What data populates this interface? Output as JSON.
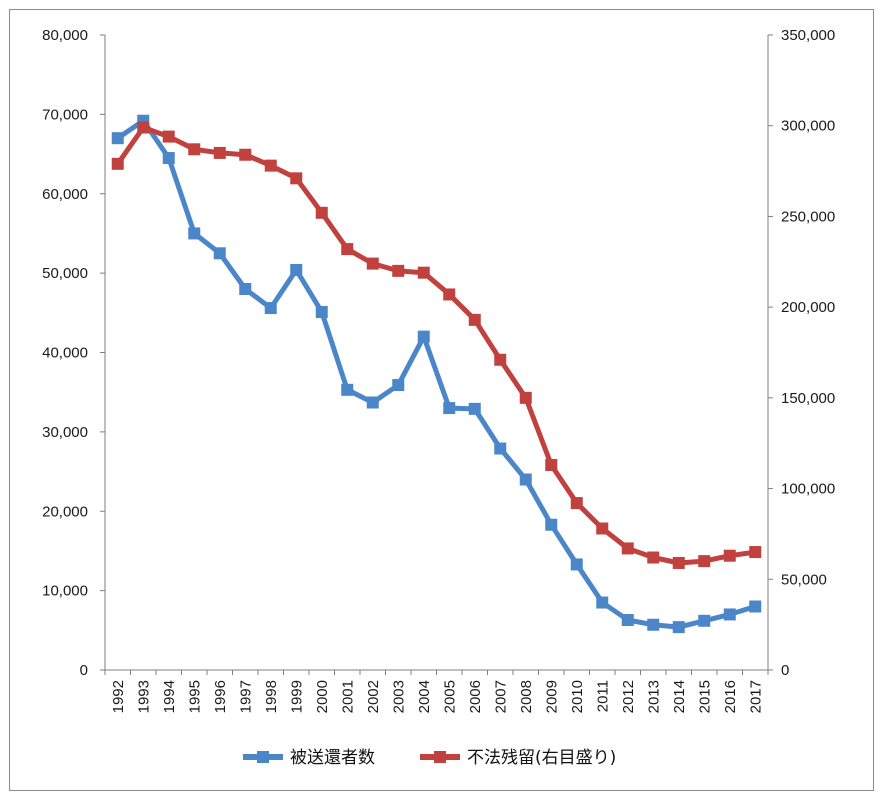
{
  "chart_data": {
    "type": "line",
    "categories": [
      "1992",
      "1993",
      "1994",
      "1995",
      "1996",
      "1997",
      "1998",
      "1999",
      "2000",
      "2001",
      "2002",
      "2003",
      "2004",
      "2005",
      "2006",
      "2007",
      "2008",
      "2009",
      "2010",
      "2011",
      "2012",
      "2013",
      "2014",
      "2015",
      "2016",
      "2017"
    ],
    "series": [
      {
        "name": "被送還者数",
        "axis": "left",
        "color": "#4a86c8",
        "values": [
          67000,
          69200,
          64500,
          55000,
          52500,
          48000,
          45600,
          50400,
          45100,
          35300,
          33700,
          35900,
          42000,
          33000,
          32900,
          27900,
          24000,
          18300,
          13300,
          8500,
          6300,
          5700,
          5400,
          6200,
          7000,
          8000
        ]
      },
      {
        "name": "不法残留(右目盛り)",
        "axis": "right",
        "color": "#c0413d",
        "values": [
          279000,
          299000,
          294000,
          287000,
          285000,
          284000,
          278000,
          271000,
          252000,
          232000,
          224000,
          220000,
          219000,
          207000,
          193000,
          171000,
          150000,
          113000,
          92000,
          78000,
          67000,
          62000,
          59000,
          60000,
          63000,
          65000
        ]
      }
    ],
    "left_axis": {
      "ylim": [
        0,
        80000
      ],
      "ticks": [
        "0",
        "10,000",
        "20,000",
        "30,000",
        "40,000",
        "50,000",
        "60,000",
        "70,000",
        "80,000"
      ]
    },
    "right_axis": {
      "ylim": [
        0,
        350000
      ],
      "ticks": [
        "0",
        "50,000",
        "100,000",
        "150,000",
        "200,000",
        "250,000",
        "300,000",
        "350,000"
      ]
    },
    "grid": false,
    "legend_placement": "bottom"
  }
}
